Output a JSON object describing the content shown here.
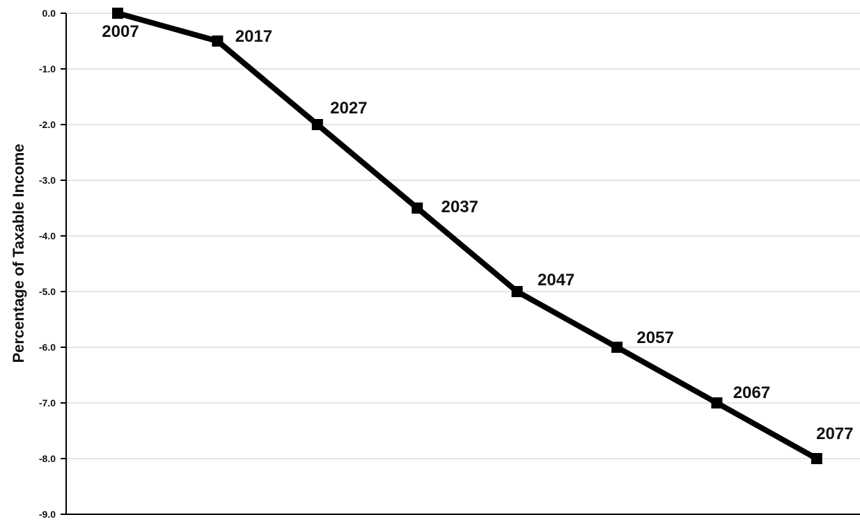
{
  "chart_data": {
    "type": "line",
    "title": "",
    "xlabel": "",
    "ylabel": "Percentage of Taxable Income",
    "ylim": [
      -9.0,
      0.0
    ],
    "y_ticks": [
      "0.0",
      "-1.0",
      "-2.0",
      "-3.0",
      "-4.0",
      "-5.0",
      "-6.0",
      "-7.0",
      "-8.0",
      "-9.0"
    ],
    "grid": true,
    "legend": "none",
    "series": [
      {
        "points": [
          {
            "label": "2007",
            "value": 0.0
          },
          {
            "label": "2017",
            "value": -0.5
          },
          {
            "label": "2027",
            "value": -2.0
          },
          {
            "label": "2037",
            "value": -3.5
          },
          {
            "label": "2047",
            "value": -5.0
          },
          {
            "label": "2057",
            "value": -6.0
          },
          {
            "label": "2067",
            "value": -7.0
          },
          {
            "label": "2077",
            "value": -8.0
          }
        ]
      }
    ],
    "colors": {
      "line": "#000000",
      "grid": "#c8c8c8",
      "axis": "#000000",
      "text": "#111111"
    }
  }
}
